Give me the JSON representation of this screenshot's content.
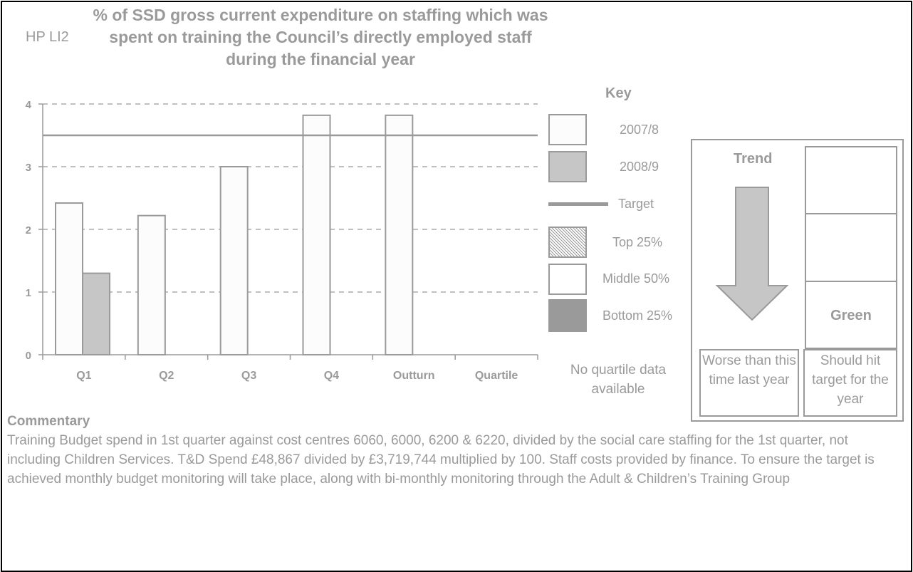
{
  "header": {
    "ref": "HP LI2",
    "title": "% of SSD gross current expenditure on staffing which was spent on training the Council’s directly employed staff during the financial year"
  },
  "chart_data": {
    "type": "bar",
    "categories": [
      "Q1",
      "Q2",
      "Q3",
      "Q4",
      "Outturn",
      "Quartile"
    ],
    "series": [
      {
        "name": "2007/8",
        "values": [
          2.42,
          2.22,
          3.0,
          3.82,
          3.82,
          null
        ],
        "color": "#fcfcfc"
      },
      {
        "name": "2008/9",
        "values": [
          1.3,
          null,
          null,
          null,
          null,
          null
        ],
        "color": "#c6c6c6"
      }
    ],
    "target": {
      "name": "Target",
      "value": 3.5,
      "color": "#9a9a9a"
    },
    "ylim": [
      0,
      4
    ],
    "yticks": [
      "0",
      "1",
      "2",
      "3",
      "4"
    ],
    "grid": true,
    "xlabel": "",
    "ylabel": ""
  },
  "key": {
    "title": "Key",
    "items": [
      {
        "label": "2007/8",
        "kind": "swatch",
        "fill": "#fcfcfc"
      },
      {
        "label": "2008/9",
        "kind": "swatch",
        "fill": "#c6c6c6"
      },
      {
        "label": "Target",
        "kind": "line",
        "fill": "#9a9a9a"
      },
      {
        "label": "Top 25%",
        "kind": "hatched",
        "fill": "#bfbfbf"
      },
      {
        "label": "Middle 50%",
        "kind": "swatch",
        "fill": "#ffffff"
      },
      {
        "label": "Bottom 25%",
        "kind": "solid",
        "fill": "#9a9a9a"
      }
    ],
    "no_data": "No quartile data available"
  },
  "status": {
    "trend_title": "Trend",
    "trend_direction": "down",
    "trend_caption": "Worse than this time last year",
    "rag_label": "Green",
    "rag_caption": "Should hit target for the year"
  },
  "commentary": {
    "heading": "Commentary",
    "text": "Training Budget spend in 1st quarter against cost centres 6060, 6000, 6200 & 6220, divided by the social care staffing for the 1st quarter, not including Children Services. T&D Spend £48,867 divided by £3,719,744 multiplied by 100. Staff costs provided by finance. To ensure the target is achieved monthly budget monitoring will take place, along with bi-monthly monitoring through the Adult & Children’s Training Group"
  }
}
